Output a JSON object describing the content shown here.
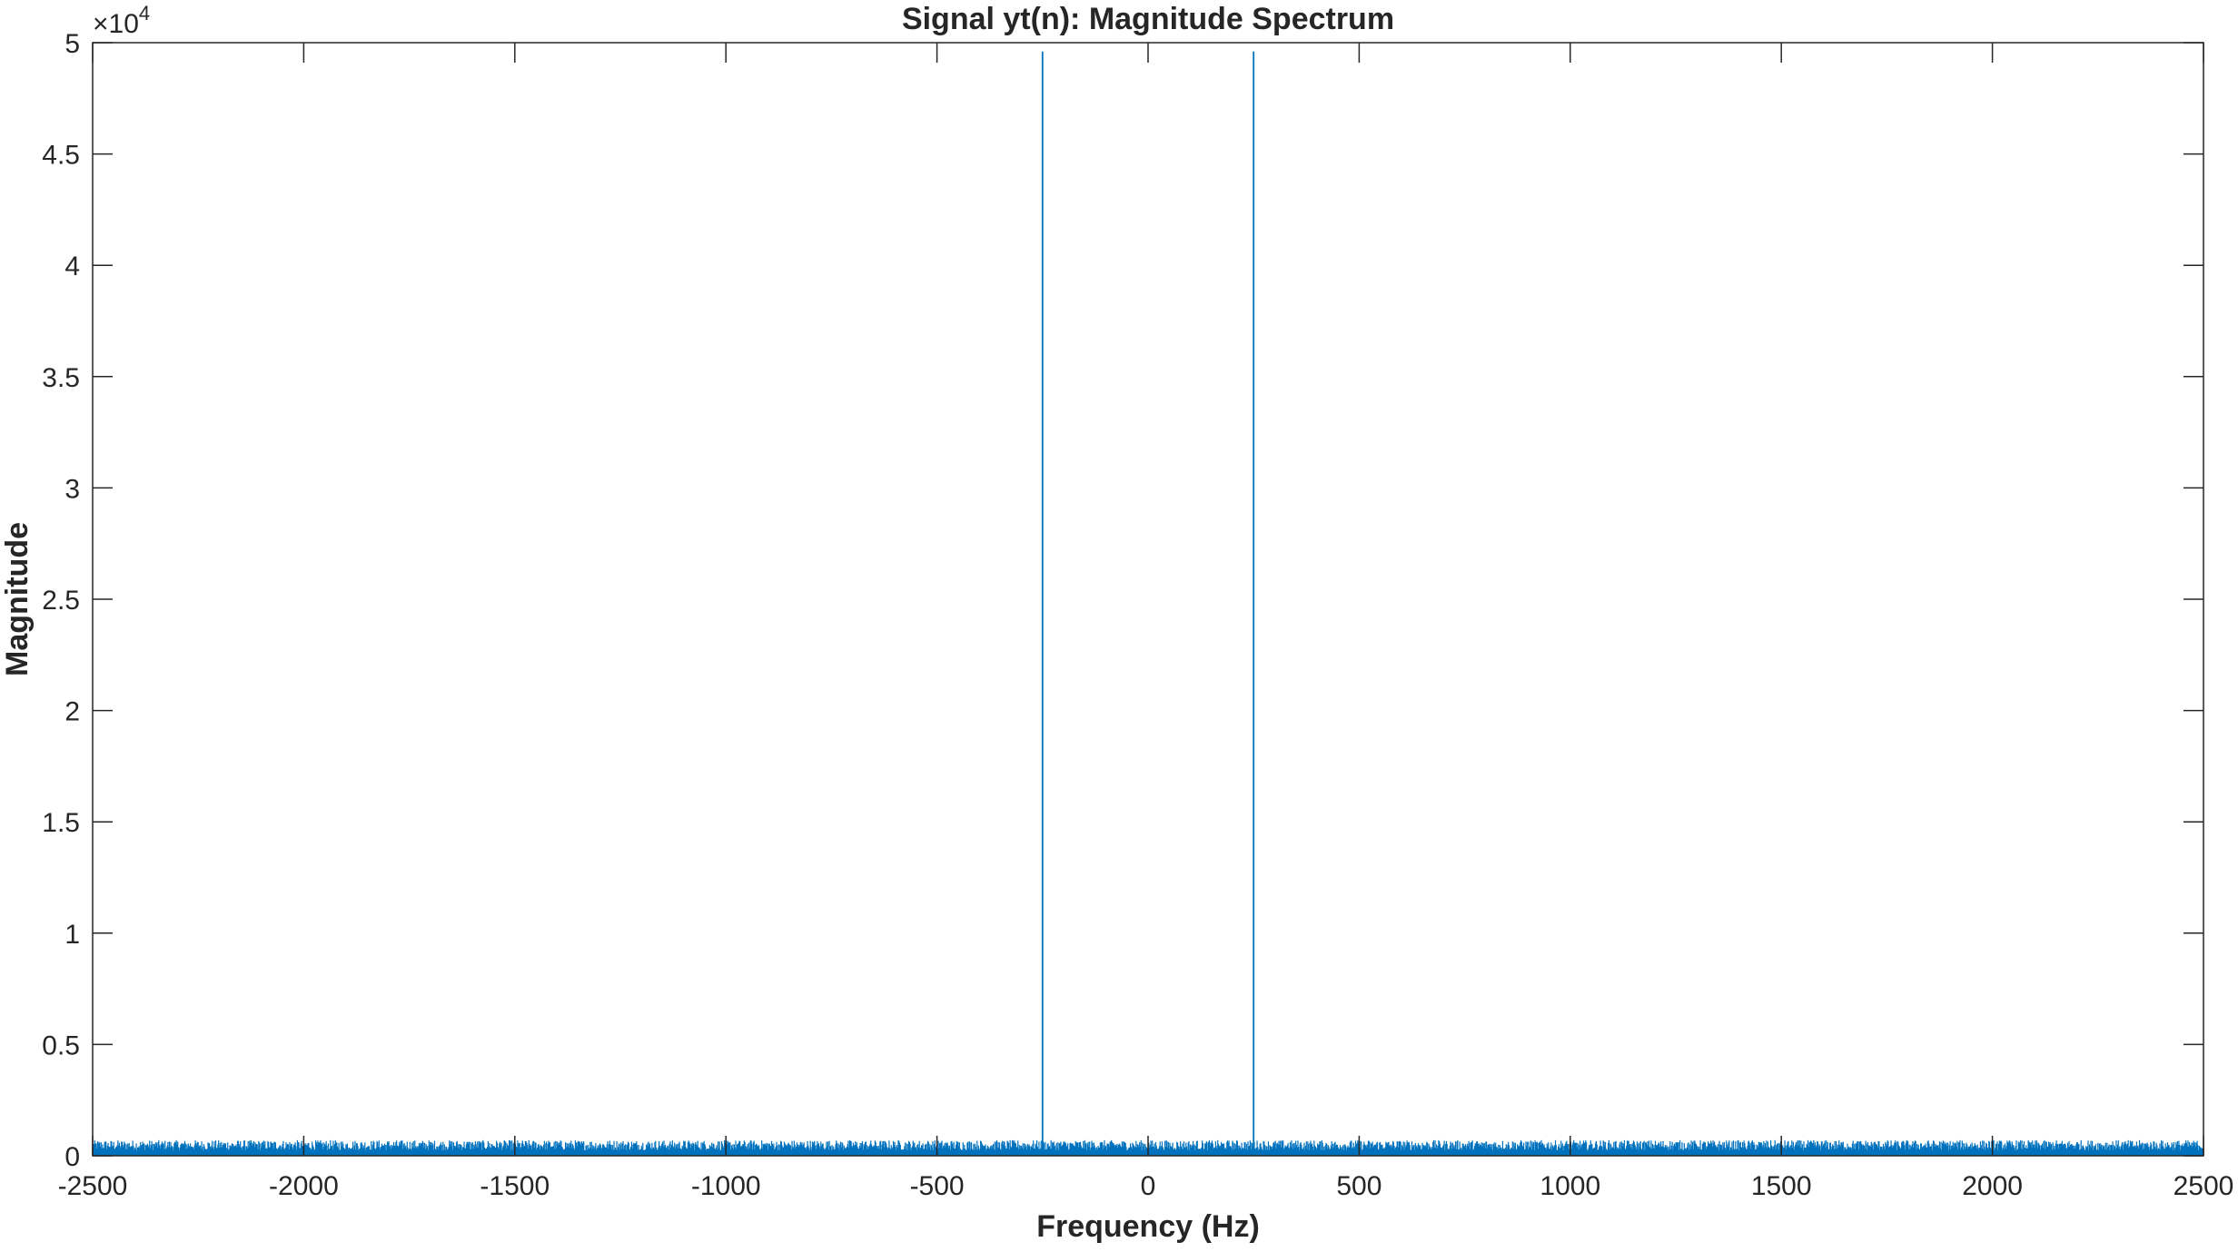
{
  "chart_data": {
    "type": "line",
    "title": "Signal yt(n): Magnitude Spectrum",
    "xlabel": "Frequency (Hz)",
    "ylabel": "Magnitude",
    "xlim": [
      -2500,
      2500
    ],
    "ylim": [
      0,
      50000
    ],
    "y_exponent_multiplier": "×10",
    "y_exponent_power": "4",
    "x_ticks": [
      -2500,
      -2000,
      -1500,
      -1000,
      -500,
      0,
      500,
      1000,
      1500,
      2000,
      2500
    ],
    "x_tick_labels": [
      "-2500",
      "-2000",
      "-1500",
      "-1000",
      "-500",
      "0",
      "500",
      "1000",
      "1500",
      "2000",
      "2500"
    ],
    "y_ticks": [
      0,
      5000,
      10000,
      15000,
      20000,
      25000,
      30000,
      35000,
      40000,
      45000,
      50000
    ],
    "y_tick_labels": [
      "0",
      "0.5",
      "1",
      "1.5",
      "2",
      "2.5",
      "3",
      "3.5",
      "4",
      "4.5",
      "5"
    ],
    "grid": false,
    "series": [
      {
        "color": "#0072BD",
        "peaks": [
          {
            "x": -250,
            "y": 49600
          },
          {
            "x": 250,
            "y": 49600
          }
        ],
        "noise_floor_max": 700
      }
    ]
  }
}
